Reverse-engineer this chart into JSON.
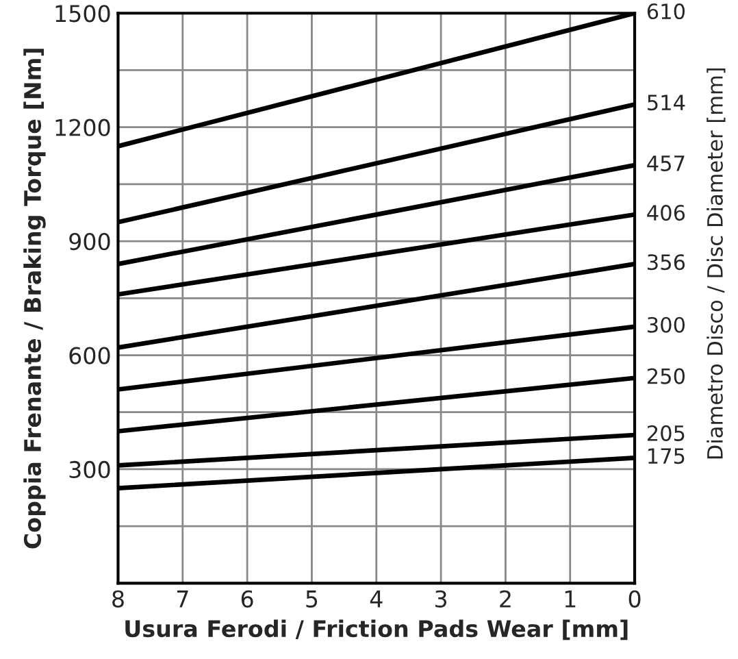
{
  "chart_data": {
    "type": "line",
    "xlabel": "Usura Ferodi / Friction Pads Wear [mm]",
    "ylabel": "Coppia Frenante / Braking Torque [Nm]",
    "y2label": "Diametro Disco / Disc Diameter [mm]",
    "x": [
      8,
      0
    ],
    "xlim": [
      8,
      0
    ],
    "xticks": [
      8,
      7,
      6,
      5,
      4,
      3,
      2,
      1,
      0
    ],
    "ylim": [
      0,
      1500
    ],
    "yticks": [
      {
        "value": 150,
        "label": null
      },
      300,
      {
        "value": 450,
        "label": null
      },
      600,
      {
        "value": 750,
        "label": null
      },
      900,
      {
        "value": 1050,
        "label": null
      },
      1200,
      {
        "value": 1350,
        "label": null
      },
      1500
    ],
    "grid": true,
    "legend": false,
    "marker": "none",
    "line_style": "solid",
    "series": [
      {
        "name": "610",
        "color": "#000000",
        "values": [
          1150,
          1500
        ]
      },
      {
        "name": "514",
        "color": "#000000",
        "values": [
          950,
          1260
        ]
      },
      {
        "name": "457",
        "color": "#000000",
        "values": [
          840,
          1100
        ]
      },
      {
        "name": "406",
        "color": "#000000",
        "values": [
          760,
          970
        ]
      },
      {
        "name": "356",
        "color": "#000000",
        "values": [
          620,
          840
        ]
      },
      {
        "name": "300",
        "color": "#000000",
        "values": [
          510,
          675
        ]
      },
      {
        "name": "250",
        "color": "#000000",
        "values": [
          400,
          540
        ]
      },
      {
        "name": "205",
        "color": "#000000",
        "values": [
          310,
          390
        ]
      },
      {
        "name": "175",
        "color": "#000000",
        "values": [
          250,
          330
        ]
      }
    ]
  }
}
